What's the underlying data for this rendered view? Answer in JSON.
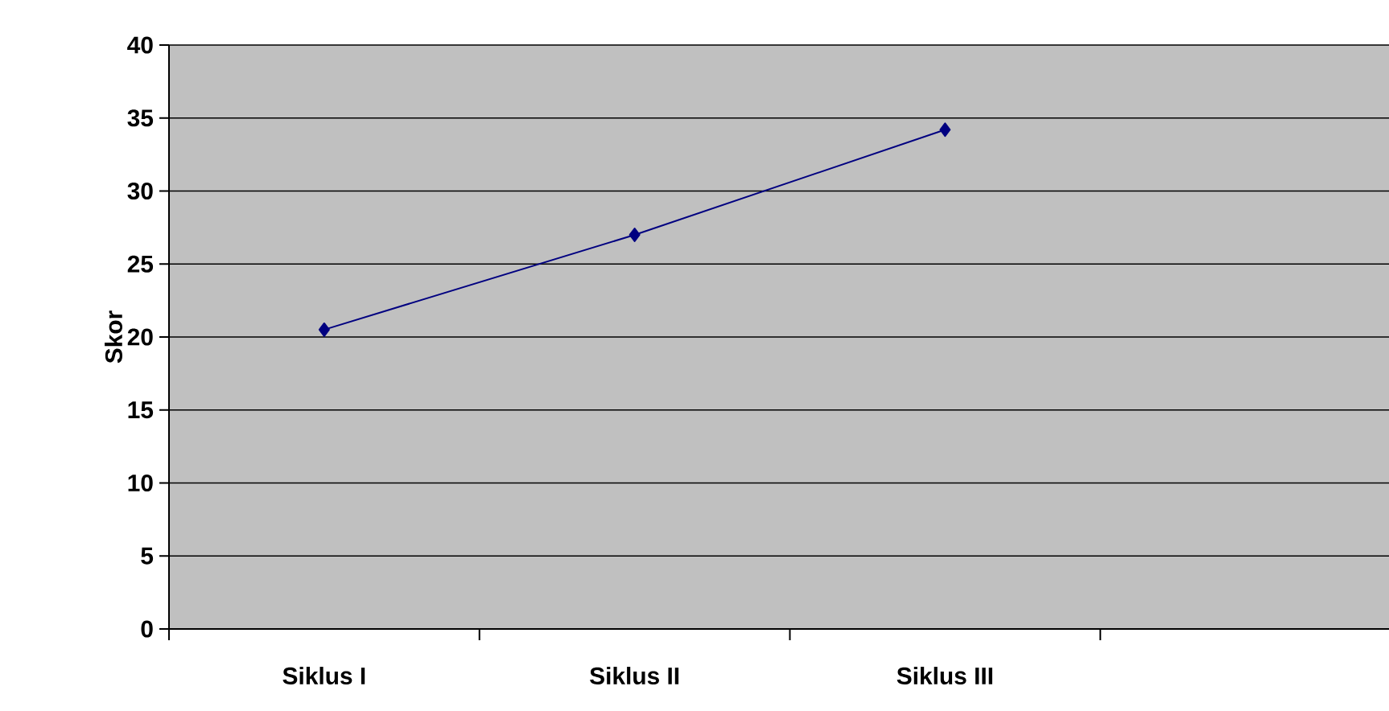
{
  "chart_data": {
    "type": "line",
    "ylabel": "Skor",
    "categories": [
      "Siklus I",
      "Siklus II",
      "Siklus III",
      null
    ],
    "values": [
      20.5,
      27,
      34.2,
      null
    ],
    "color": "#000080",
    "marker": "diamond",
    "line_style": "solid",
    "ylim": [
      0,
      40
    ],
    "yticks": [
      0,
      5,
      10,
      15,
      20,
      25,
      30,
      35,
      40
    ],
    "grid": "y"
  }
}
